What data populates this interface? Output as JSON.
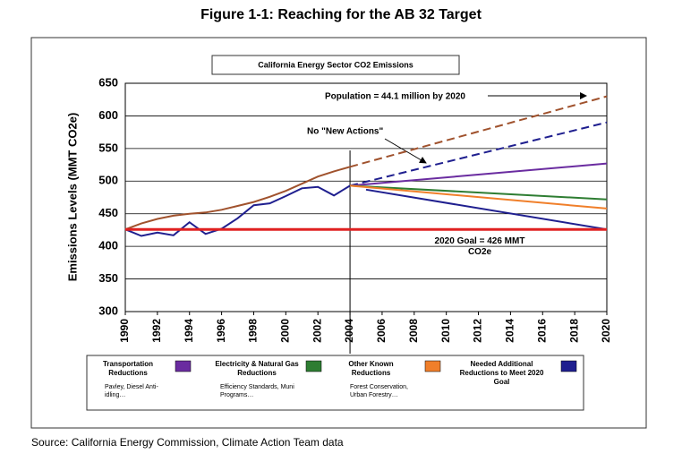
{
  "chart_data": {
    "type": "line",
    "title": "Figure 1-1: Reaching for the AB 32 Target",
    "subtitle": "California Energy Sector CO2 Emissions",
    "ylabel": "Emissions Levels (MMT CO2e)",
    "source": "Source: California Energy Commission, Climate Action Team data",
    "xlim": [
      1990,
      2020
    ],
    "xticks": [
      1990,
      1992,
      1994,
      1996,
      1998,
      2000,
      2002,
      2004,
      2006,
      2008,
      2010,
      2012,
      2014,
      2016,
      2018,
      2020
    ],
    "ylim": [
      300,
      650
    ],
    "yticks": [
      300,
      350,
      400,
      450,
      500,
      550,
      600,
      650
    ],
    "grid": true,
    "vline": 2004,
    "annotations": [
      "Population = 44.1 million by 2020",
      "No \"New Actions\"",
      "2020 Goal = 426 MMT CO2e"
    ],
    "series": [
      {
        "color": "#a0522d",
        "dashed": false,
        "x": [
          1990,
          1991,
          1992,
          1993,
          1994,
          1995,
          1996,
          1997,
          1998,
          1999,
          2000,
          2001,
          2002,
          2003,
          2004
        ],
        "values": [
          426,
          435,
          442,
          447,
          450,
          452,
          456,
          462,
          468,
          476,
          485,
          496,
          507,
          515,
          522
        ]
      },
      {
        "color": "#a0522d",
        "dashed": true,
        "x": [
          2004,
          2020
        ],
        "values": [
          522,
          630
        ]
      },
      {
        "color": "#1f1f8f",
        "dashed": false,
        "x": [
          1990,
          1991,
          1992,
          1993,
          1994,
          1995,
          1996,
          1997,
          1998,
          1999,
          2000,
          2001,
          2002,
          2003,
          2004
        ],
        "values": [
          426,
          416,
          421,
          417,
          437,
          419,
          427,
          443,
          463,
          466,
          477,
          489,
          491,
          478,
          493
        ]
      },
      {
        "color": "#1f1f8f",
        "dashed": true,
        "x": [
          2004,
          2020
        ],
        "values": [
          493,
          590
        ]
      },
      {
        "name": "Transportation Reductions",
        "note": "Pavley, Diesel Anti-idling…",
        "color": "#6a2ca0",
        "dashed": false,
        "x": [
          2004,
          2020
        ],
        "values": [
          493,
          527
        ]
      },
      {
        "name": "Electricity & Natural Gas Reductions",
        "note": "Efficiency Standards, Muni Programs…",
        "color": "#2e7d32",
        "dashed": false,
        "x": [
          2004,
          2020
        ],
        "values": [
          493,
          472
        ]
      },
      {
        "name": "Other Known Reductions",
        "note": "Forest Conservation, Urban Forestry…",
        "color": "#f07f2a",
        "dashed": false,
        "x": [
          2004,
          2020
        ],
        "values": [
          493,
          458
        ]
      },
      {
        "name": "Needed Additional Reductions to Meet 2020 Goal",
        "color": "#1f1f8f",
        "dashed": false,
        "x": [
          2005,
          2020
        ],
        "values": [
          487,
          426
        ]
      },
      {
        "color": "#e02020",
        "dashed": false,
        "width": 3,
        "x": [
          1990,
          2020
        ],
        "values": [
          426,
          426
        ]
      }
    ]
  }
}
